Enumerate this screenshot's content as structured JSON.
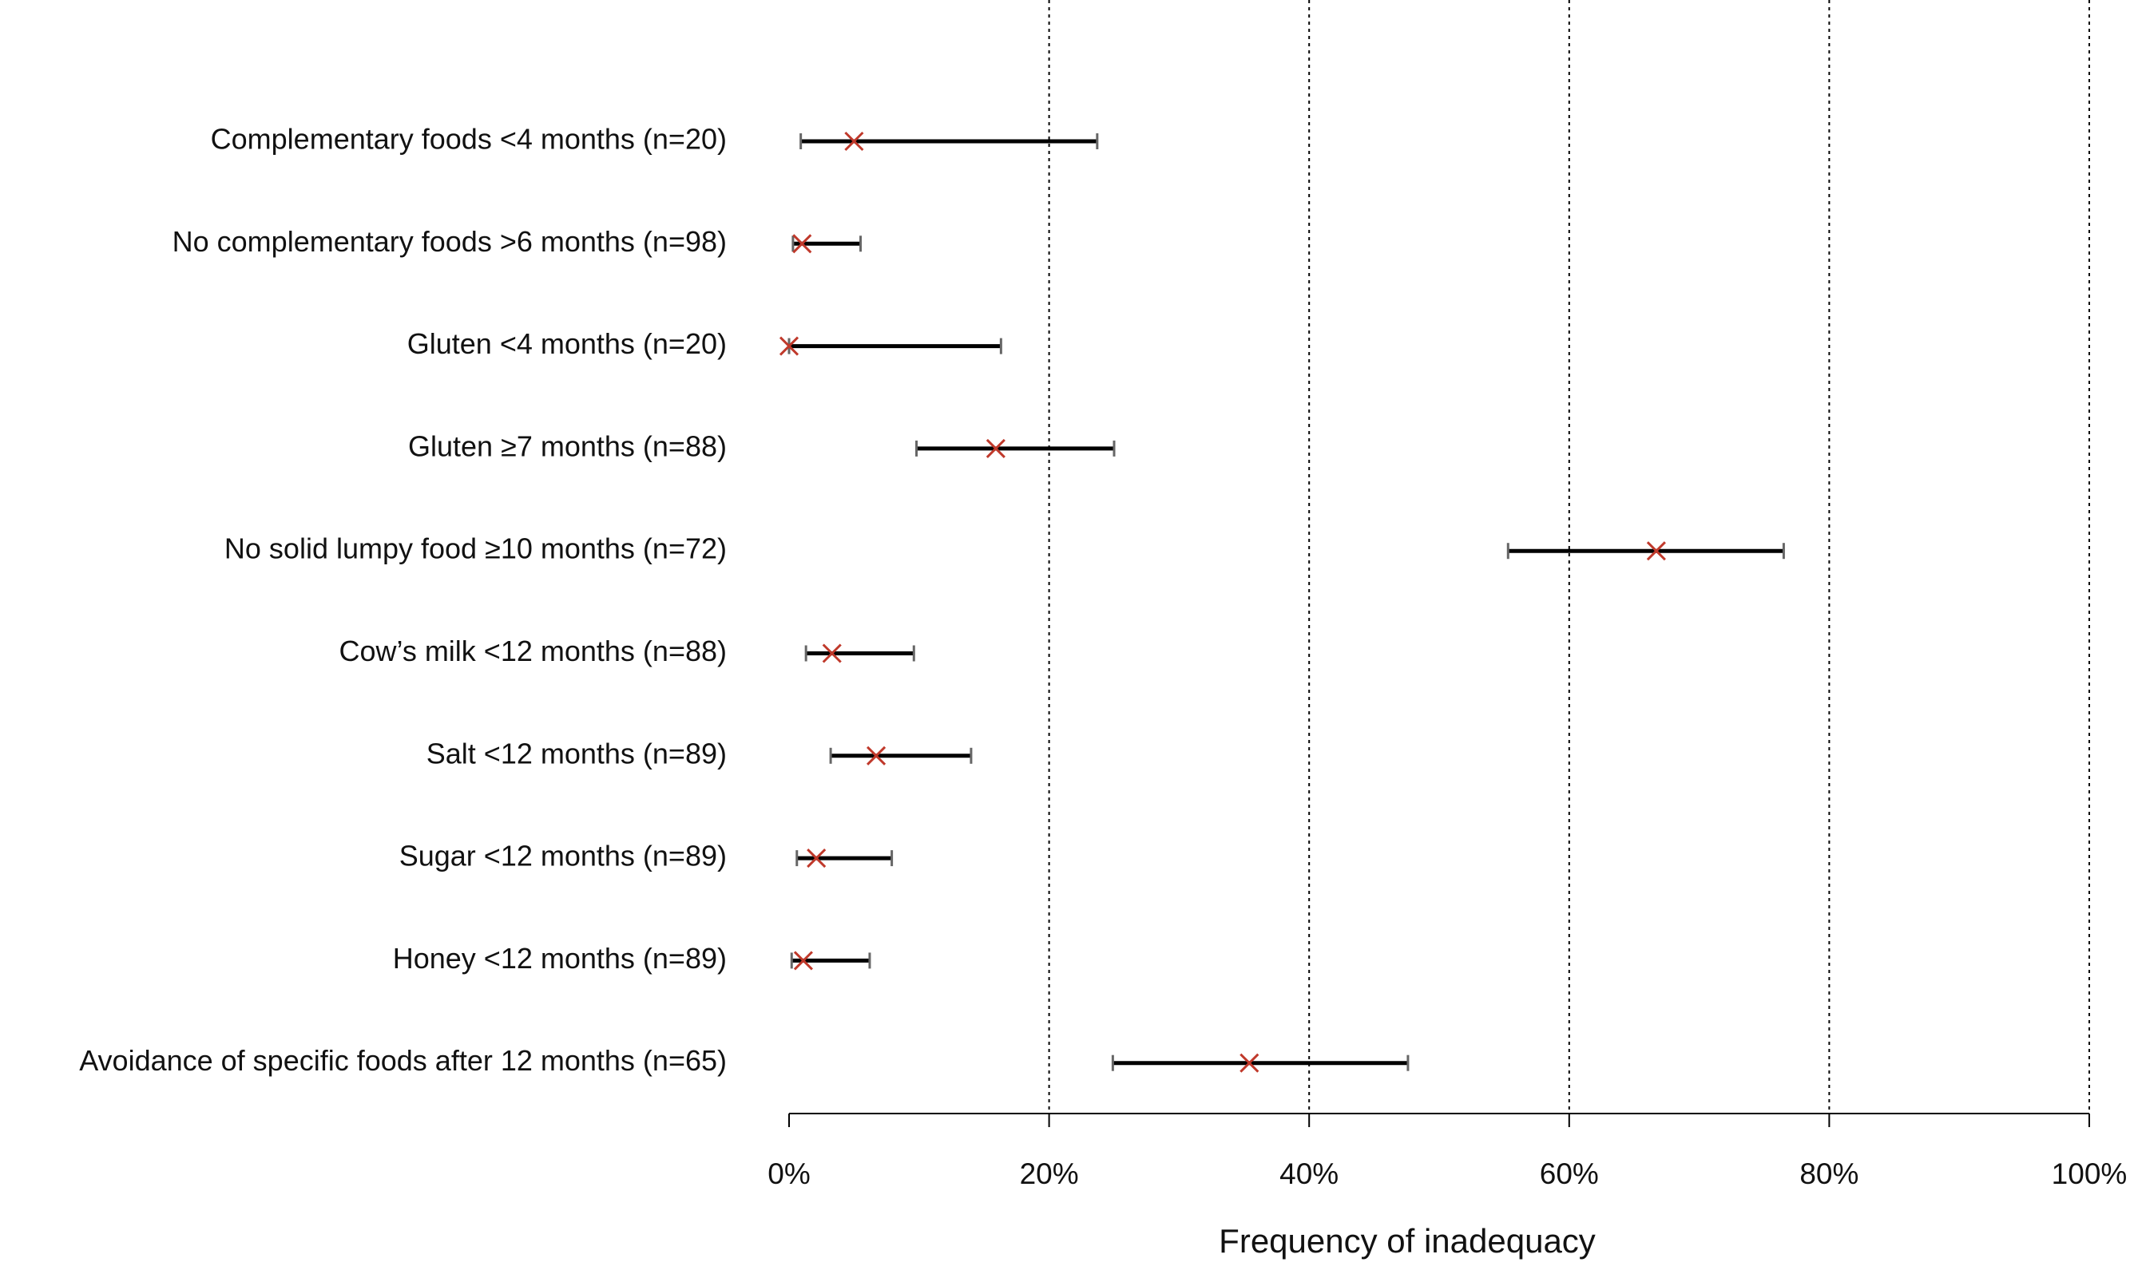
{
  "chart_data": {
    "type": "interval",
    "xlabel": "Frequency of inadequacy",
    "categories": [
      "Complementary foods <4 months (n=20)",
      "No complementary foods >6 months (n=98)",
      "Gluten <4 months (n=20)",
      "Gluten ≥7 months (n=88)",
      "No solid lumpy food ≥10 months (n=72)",
      "Cow’s milk <12 months (n=88)",
      "Salt <12 months (n=89)",
      "Sugar <12 months (n=89)",
      "Honey <12 months (n=89)",
      "Avoidance of specific foods after 12 months (n=65)"
    ],
    "values": [
      5.0,
      1.0,
      0.0,
      15.9,
      66.7,
      3.3,
      6.7,
      2.1,
      1.1,
      35.4
    ],
    "lower": [
      0.9,
      0.3,
      0.0,
      9.8,
      55.3,
      1.3,
      3.2,
      0.6,
      0.2,
      24.9
    ],
    "upper": [
      23.7,
      5.5,
      16.3,
      25.0,
      76.5,
      9.6,
      14.0,
      7.9,
      6.2,
      47.6
    ],
    "color": "#c0392b",
    "xlim": [
      0,
      100
    ],
    "xticks": [
      {
        "value": 0,
        "label": "0%"
      },
      {
        "value": 20,
        "label": "20%"
      },
      {
        "value": 40,
        "label": "40%"
      },
      {
        "value": 60,
        "label": "60%"
      },
      {
        "value": 80,
        "label": "80%"
      },
      {
        "value": 100,
        "label": "100%"
      }
    ],
    "grid": true
  }
}
